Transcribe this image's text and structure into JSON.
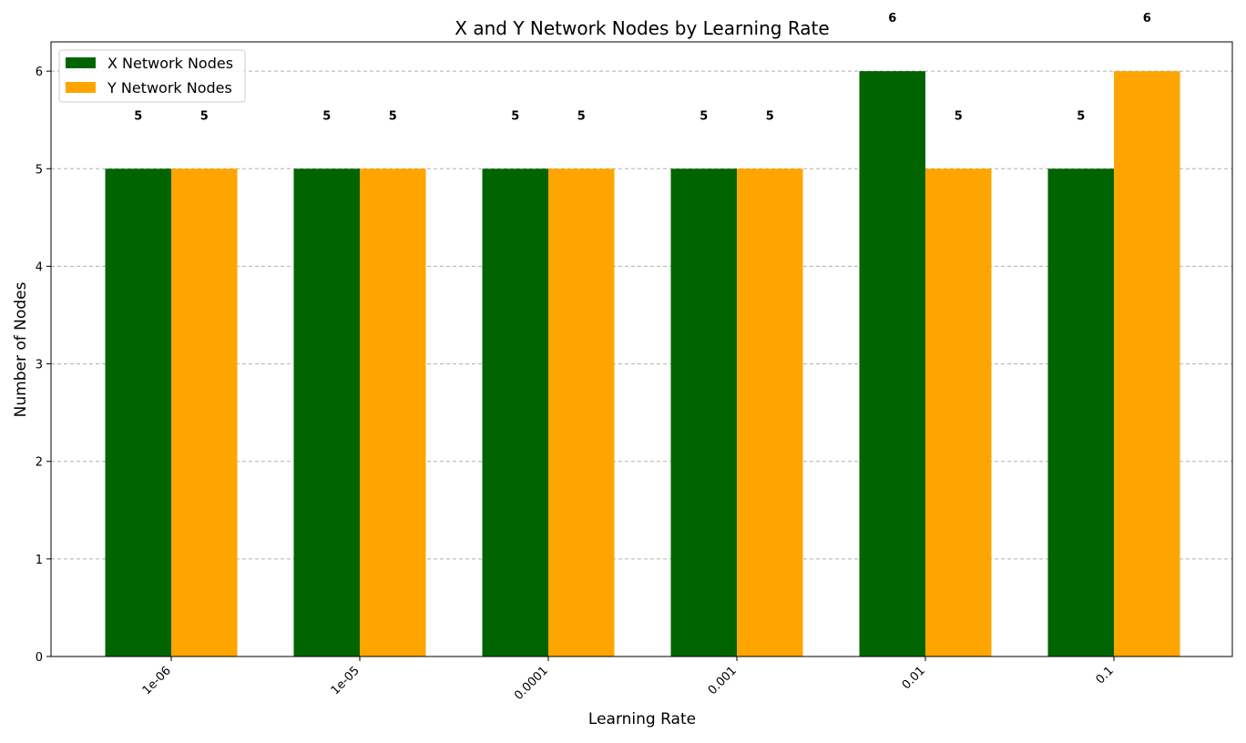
{
  "chart_data": {
    "type": "bar",
    "title": "X and Y Network Nodes by Learning Rate",
    "xlabel": "Learning Rate",
    "ylabel": "Number of Nodes",
    "categories": [
      "1e-06",
      "1e-05",
      "0.0001",
      "0.001",
      "0.01",
      "0.1"
    ],
    "series": [
      {
        "name": "X Network Nodes",
        "color": "#006400",
        "values": [
          5,
          5,
          5,
          5,
          6,
          5
        ]
      },
      {
        "name": "Y Network Nodes",
        "color": "#FFA500",
        "values": [
          5,
          5,
          5,
          5,
          5,
          6
        ]
      }
    ],
    "ylim": [
      0,
      6.3
    ],
    "yticks": [
      0,
      1,
      2,
      3,
      4,
      5,
      6
    ],
    "grid": {
      "axis": "y",
      "style": "dashed"
    },
    "legend": "top-left",
    "data_labels": true
  }
}
